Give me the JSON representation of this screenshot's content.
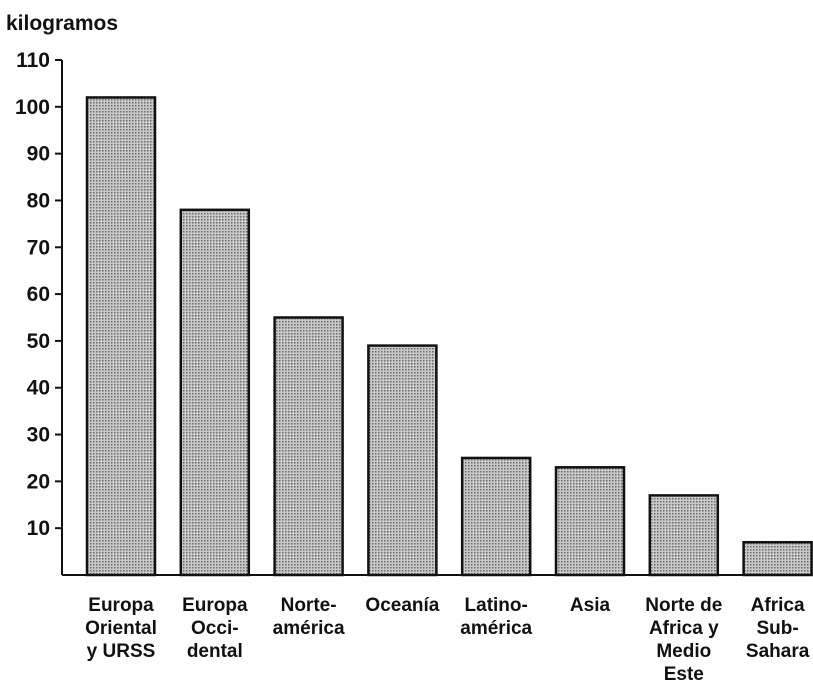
{
  "chart_data": {
    "type": "bar",
    "ylabel": "kilogramos",
    "xlabel": "",
    "title": "",
    "ylim": [
      0,
      110
    ],
    "yticks": [
      10,
      20,
      30,
      40,
      50,
      60,
      70,
      80,
      90,
      100,
      110
    ],
    "grid": false,
    "categories": [
      [
        "Europa",
        "Oriental",
        "y URSS"
      ],
      [
        "Europa",
        "Occi-",
        "dental"
      ],
      [
        "Norte-",
        "américa"
      ],
      [
        "Oceanía"
      ],
      [
        "Latino-",
        "américa"
      ],
      [
        "Asia"
      ],
      [
        "Norte de",
        "Africa y",
        "Medio",
        "Este"
      ],
      [
        "Africa",
        "Sub-",
        "Sahara"
      ]
    ],
    "values": [
      102,
      78,
      55,
      49,
      25,
      23,
      17,
      7
    ],
    "colors": {
      "bar_fill": "#b9b9b9",
      "bar_stroke": "#111111",
      "axis": "#111111"
    }
  }
}
